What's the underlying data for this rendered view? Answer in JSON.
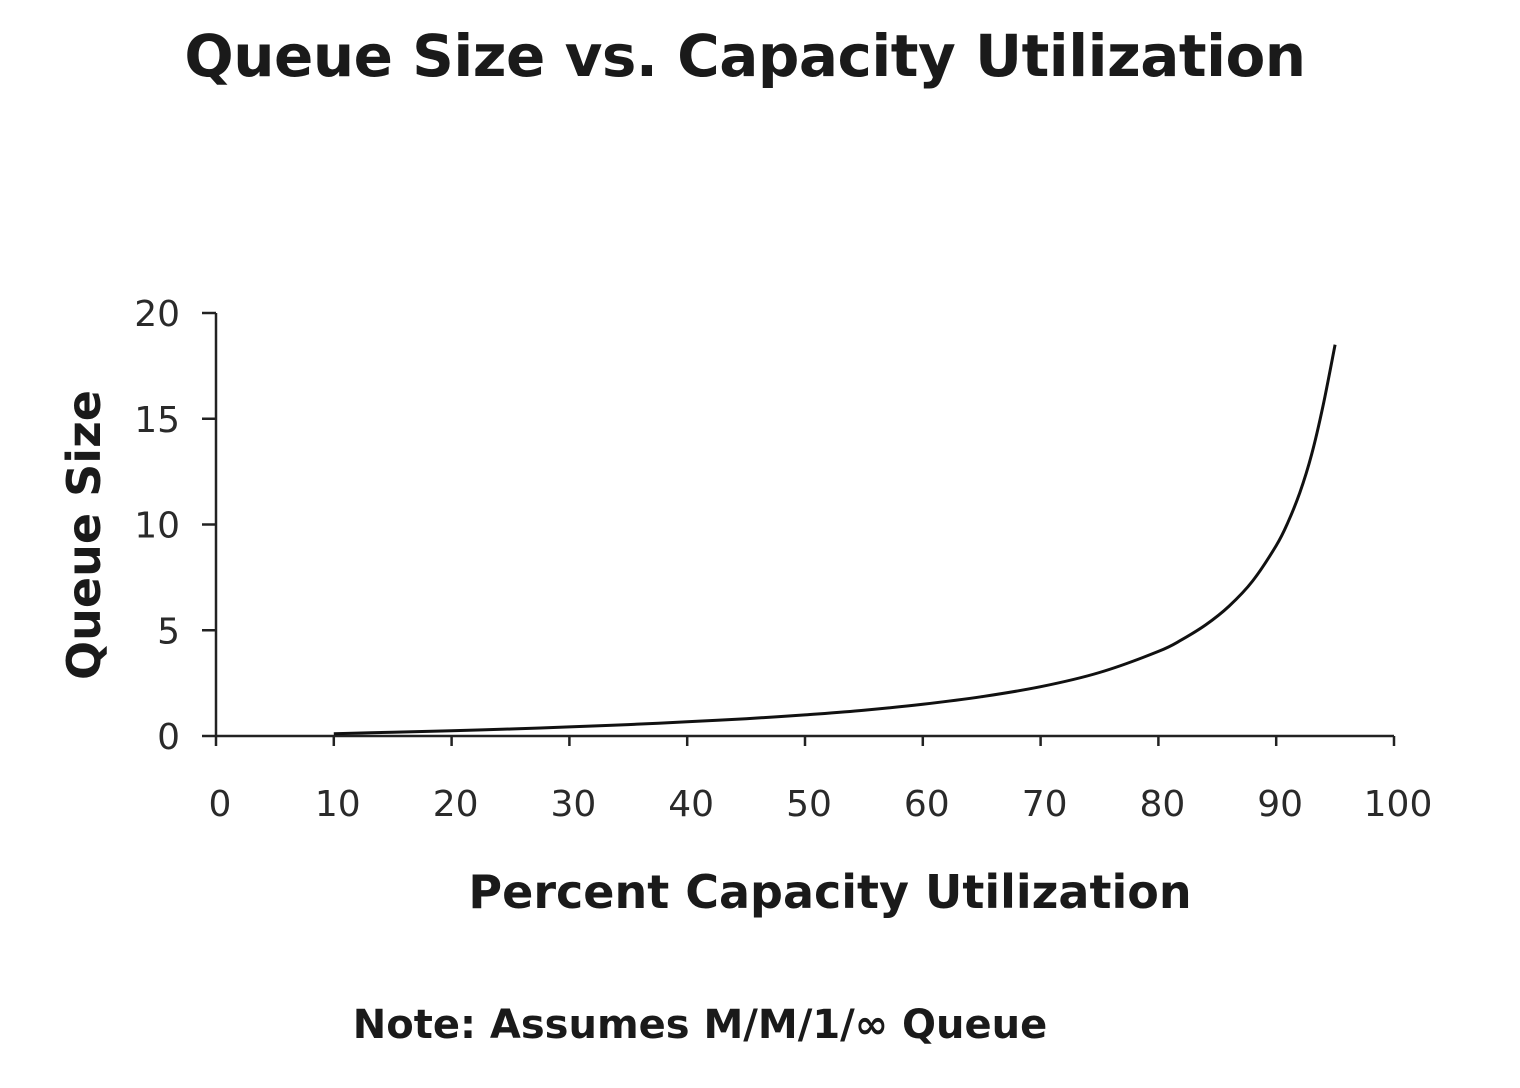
{
  "chart_data": {
    "type": "line",
    "title": "Queue Size vs. Capacity Utilization",
    "xlabel": "Percent Capacity Utilization",
    "ylabel": "Queue Size",
    "xlim": [
      0,
      100
    ],
    "ylim": [
      0,
      20
    ],
    "xticks": [
      "0",
      "10",
      "20",
      "30",
      "40",
      "50",
      "60",
      "70",
      "80",
      "90",
      "100"
    ],
    "yticks": [
      "0",
      "5",
      "10",
      "15",
      "20"
    ],
    "grid": false,
    "legend": "none",
    "line_color": "#111111",
    "series": [
      {
        "x": [
          10,
          15,
          20,
          25,
          30,
          35,
          40,
          45,
          50,
          55,
          60,
          65,
          70,
          75,
          80,
          82,
          84,
          86,
          88,
          90,
          91,
          92,
          93,
          94,
          95
        ],
        "values": [
          0.11,
          0.18,
          0.25,
          0.33,
          0.43,
          0.54,
          0.67,
          0.82,
          1.0,
          1.22,
          1.5,
          1.86,
          2.33,
          3.0,
          4.0,
          4.56,
          5.25,
          6.14,
          7.33,
          9.0,
          10.11,
          11.5,
          13.29,
          15.67,
          18.5
        ]
      }
    ]
  },
  "note": "Note: Assumes M/M/1/∞ Queue"
}
